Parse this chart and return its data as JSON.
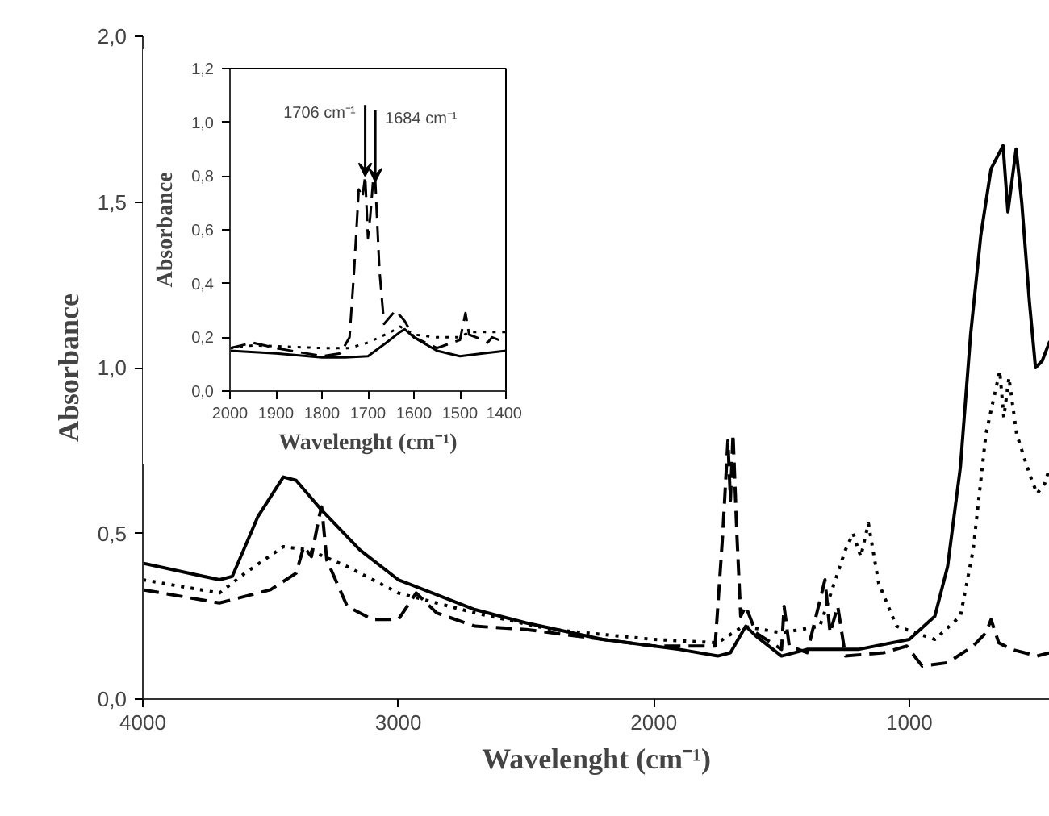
{
  "chart_data": [
    {
      "type": "line",
      "xlabel": "Wavelenght (cm⁻¹)",
      "ylabel": "Absorbance",
      "xlim": [
        4000,
        450
      ],
      "ylim": [
        0,
        2.0
      ],
      "xticks": [
        4000,
        3000,
        2000,
        1000
      ],
      "yticks": [
        {
          "value": 0,
          "label": "0,0"
        },
        {
          "value": 0.5,
          "label": "0,5"
        },
        {
          "value": 1.0,
          "label": "1,0"
        },
        {
          "value": 1.5,
          "label": "1,5"
        },
        {
          "value": 2.0,
          "label": "2,0"
        }
      ],
      "series": [
        {
          "color": "#000000",
          "line_style": "solid",
          "x": [
            4000,
            3700,
            3650,
            3550,
            3450,
            3400,
            3300,
            3150,
            3000,
            2900,
            2700,
            2500,
            2200,
            1900,
            1750,
            1700,
            1640,
            1600,
            1500,
            1400,
            1200,
            1000,
            900,
            850,
            800,
            760,
            720,
            680,
            633,
            614,
            582,
            560,
            530,
            506,
            480,
            450
          ],
          "values": [
            0.41,
            0.36,
            0.37,
            0.55,
            0.67,
            0.66,
            0.57,
            0.45,
            0.36,
            0.33,
            0.27,
            0.23,
            0.18,
            0.15,
            0.13,
            0.14,
            0.22,
            0.19,
            0.13,
            0.15,
            0.15,
            0.18,
            0.25,
            0.4,
            0.7,
            1.1,
            1.4,
            1.6,
            1.67,
            1.47,
            1.66,
            1.5,
            1.2,
            1.0,
            1.02,
            1.08
          ]
        },
        {
          "color": "#000000",
          "line_style": "dotted",
          "x": [
            4000,
            3700,
            3600,
            3450,
            3350,
            3200,
            3000,
            2900,
            2700,
            2400,
            2000,
            1750,
            1650,
            1500,
            1350,
            1250,
            1220,
            1190,
            1160,
            1120,
            1050,
            900,
            800,
            750,
            700,
            646,
            630,
            610,
            580,
            530,
            500,
            470,
            450
          ],
          "values": [
            0.36,
            0.32,
            0.38,
            0.46,
            0.45,
            0.4,
            0.32,
            0.3,
            0.26,
            0.21,
            0.18,
            0.17,
            0.22,
            0.2,
            0.22,
            0.45,
            0.5,
            0.43,
            0.53,
            0.35,
            0.22,
            0.18,
            0.25,
            0.45,
            0.8,
            0.99,
            0.85,
            0.97,
            0.8,
            0.68,
            0.62,
            0.65,
            0.7
          ]
        },
        {
          "color": "#000000",
          "line_style": "dashed",
          "x": [
            4000,
            3700,
            3500,
            3400,
            3370,
            3340,
            3310,
            3300,
            3280,
            3200,
            3100,
            3000,
            2930,
            2850,
            2700,
            2500,
            2200,
            2000,
            1760,
            1730,
            1710,
            1700,
            1690,
            1675,
            1660,
            1640,
            1600,
            1500,
            1490,
            1470,
            1400,
            1330,
            1310,
            1280,
            1250,
            1100,
            1010,
            950,
            850,
            750,
            700,
            680,
            650,
            600,
            500,
            450
          ],
          "values": [
            0.33,
            0.29,
            0.33,
            0.38,
            0.46,
            0.43,
            0.55,
            0.58,
            0.42,
            0.28,
            0.24,
            0.24,
            0.32,
            0.26,
            0.22,
            0.21,
            0.18,
            0.16,
            0.16,
            0.5,
            0.78,
            0.6,
            0.8,
            0.5,
            0.25,
            0.28,
            0.2,
            0.15,
            0.28,
            0.16,
            0.14,
            0.36,
            0.2,
            0.28,
            0.13,
            0.14,
            0.16,
            0.1,
            0.11,
            0.16,
            0.2,
            0.24,
            0.17,
            0.15,
            0.13,
            0.14
          ]
        }
      ]
    },
    {
      "type": "line",
      "xlabel": "Wavelenght (cm⁻¹)",
      "ylabel": "Absorbance",
      "xlim": [
        2000,
        1400
      ],
      "ylim": [
        0,
        1.2
      ],
      "xticks": [
        2000,
        1900,
        1800,
        1700,
        1600,
        1500,
        1400
      ],
      "yticks": [
        {
          "value": 0,
          "label": "0,0"
        },
        {
          "value": 0.2,
          "label": "0,2"
        },
        {
          "value": 0.4,
          "label": "0,4"
        },
        {
          "value": 0.6,
          "label": "0,6"
        },
        {
          "value": 0.8,
          "label": "0,8"
        },
        {
          "value": 1.0,
          "label": "1,0"
        },
        {
          "value": 1.2,
          "label": "1,2"
        }
      ],
      "annotations": [
        {
          "text": "1706 cm⁻¹",
          "x": 1706,
          "y": 0.8
        },
        {
          "text": "1684 cm⁻¹",
          "x": 1684,
          "y": 0.78
        }
      ],
      "series": [
        {
          "color": "#000000",
          "line_style": "solid",
          "x": [
            2000,
            1900,
            1800,
            1750,
            1700,
            1660,
            1630,
            1620,
            1600,
            1550,
            1500,
            1450,
            1400
          ],
          "values": [
            0.15,
            0.14,
            0.125,
            0.125,
            0.13,
            0.18,
            0.22,
            0.23,
            0.2,
            0.15,
            0.13,
            0.14,
            0.15
          ]
        },
        {
          "color": "#000000",
          "line_style": "dotted",
          "x": [
            2000,
            1950,
            1800,
            1740,
            1700,
            1650,
            1630,
            1600,
            1550,
            1500,
            1480,
            1400
          ],
          "values": [
            0.16,
            0.17,
            0.16,
            0.16,
            0.18,
            0.22,
            0.24,
            0.21,
            0.2,
            0.2,
            0.22,
            0.22
          ]
        },
        {
          "color": "#000000",
          "line_style": "dashed",
          "x": [
            2000,
            1950,
            1900,
            1800,
            1760,
            1740,
            1730,
            1720,
            1712,
            1706,
            1700,
            1695,
            1688,
            1684,
            1675,
            1665,
            1650,
            1640,
            1620,
            1600,
            1550,
            1500,
            1488,
            1480,
            1450,
            1440,
            1430,
            1400
          ],
          "values": [
            0.16,
            0.18,
            0.16,
            0.13,
            0.14,
            0.2,
            0.45,
            0.75,
            0.72,
            0.8,
            0.57,
            0.65,
            0.8,
            0.78,
            0.45,
            0.25,
            0.28,
            0.3,
            0.26,
            0.2,
            0.16,
            0.19,
            0.29,
            0.21,
            0.19,
            0.18,
            0.2,
            0.18
          ]
        }
      ]
    }
  ]
}
